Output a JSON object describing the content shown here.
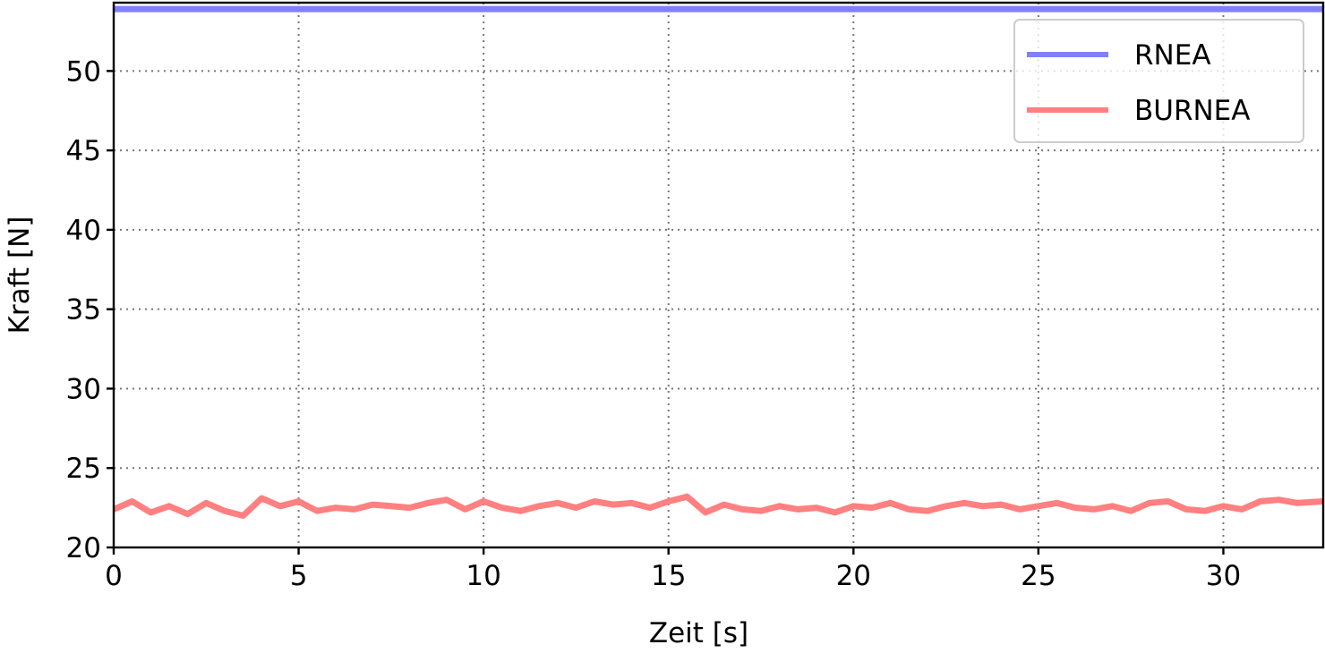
{
  "chart_data": {
    "type": "line",
    "title": "",
    "xlabel": "Zeit [s]",
    "ylabel": "Kraft [N]",
    "xlim": [
      0,
      32.7
    ],
    "ylim": [
      20,
      54.3
    ],
    "xticks": [
      0,
      5,
      10,
      15,
      20,
      25,
      30
    ],
    "yticks": [
      20,
      25,
      30,
      35,
      40,
      45,
      50
    ],
    "grid": true,
    "legend_position": "top-right",
    "series": [
      {
        "name": "RNEA",
        "color": "#8080ff",
        "x": [
          0,
          32.7
        ],
        "y": [
          53.9,
          53.9
        ]
      },
      {
        "name": "BURNEA",
        "color": "#ff8080",
        "x": [
          0,
          0.5,
          1.0,
          1.5,
          2.0,
          2.5,
          3.0,
          3.5,
          4.0,
          4.5,
          5.0,
          5.5,
          6.0,
          6.5,
          7.0,
          7.5,
          8.0,
          8.5,
          9.0,
          9.5,
          10.0,
          10.5,
          11.0,
          11.5,
          12.0,
          12.5,
          13.0,
          13.5,
          14.0,
          14.5,
          15.0,
          15.5,
          16.0,
          16.5,
          17.0,
          17.5,
          18.0,
          18.5,
          19.0,
          19.5,
          20.0,
          20.5,
          21.0,
          21.5,
          22.0,
          22.5,
          23.0,
          23.5,
          24.0,
          24.5,
          25.0,
          25.5,
          26.0,
          26.5,
          27.0,
          27.5,
          28.0,
          28.5,
          29.0,
          29.5,
          30.0,
          30.5,
          31.0,
          31.5,
          32.0,
          32.7
        ],
        "y": [
          22.4,
          22.9,
          22.2,
          22.6,
          22.1,
          22.8,
          22.3,
          22.0,
          23.1,
          22.6,
          22.9,
          22.3,
          22.5,
          22.4,
          22.7,
          22.6,
          22.5,
          22.8,
          23.0,
          22.4,
          22.9,
          22.5,
          22.3,
          22.6,
          22.8,
          22.5,
          22.9,
          22.7,
          22.8,
          22.5,
          22.9,
          23.2,
          22.2,
          22.7,
          22.4,
          22.3,
          22.6,
          22.4,
          22.5,
          22.2,
          22.6,
          22.5,
          22.8,
          22.4,
          22.3,
          22.6,
          22.8,
          22.6,
          22.7,
          22.4,
          22.6,
          22.8,
          22.5,
          22.4,
          22.6,
          22.3,
          22.8,
          22.9,
          22.4,
          22.3,
          22.6,
          22.4,
          22.9,
          23.0,
          22.8,
          22.9
        ]
      }
    ]
  }
}
